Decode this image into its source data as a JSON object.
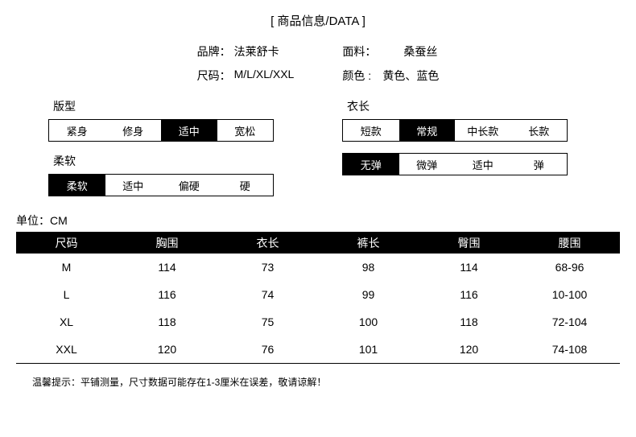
{
  "header": "[ 商品信息/DATA ]",
  "info": {
    "brand_label": "品牌：",
    "brand_value": "法莱舒卡",
    "material_label": "面料：",
    "material_value": "桑蚕丝",
    "size_label": "尺码：",
    "size_value": "M/L/XL/XXL",
    "color_label": "颜色 :",
    "color_value": "黄色、蓝色"
  },
  "selectors": {
    "fit": {
      "title": "版型",
      "options": [
        "紧身",
        "修身",
        "适中",
        "宽松"
      ],
      "active": 2
    },
    "length": {
      "title": "衣长",
      "options": [
        "短款",
        "常规",
        "中长款",
        "长款"
      ],
      "active": 1
    },
    "softness": {
      "title": "柔软",
      "options": [
        "柔软",
        "适中",
        "偏硬",
        "硬"
      ],
      "active": 0
    },
    "stretch": {
      "title": "",
      "options": [
        "无弹",
        "微弹",
        "适中",
        "弹"
      ],
      "active": 0
    }
  },
  "unit_label": "单位：CM",
  "table": {
    "headers": [
      "尺码",
      "胸围",
      "衣长",
      "裤长",
      "臀围",
      "腰围"
    ],
    "rows": [
      [
        "M",
        "114",
        "73",
        "98",
        "114",
        "68-96"
      ],
      [
        "L",
        "116",
        "74",
        "99",
        "116",
        "10-100"
      ],
      [
        "XL",
        "118",
        "75",
        "100",
        "118",
        "72-104"
      ],
      [
        "XXL",
        "120",
        "76",
        "101",
        "120",
        "74-108"
      ]
    ]
  },
  "note": "温馨提示：平铺测量，尺寸数据可能存在1-3厘米在误差，敬请谅解！"
}
